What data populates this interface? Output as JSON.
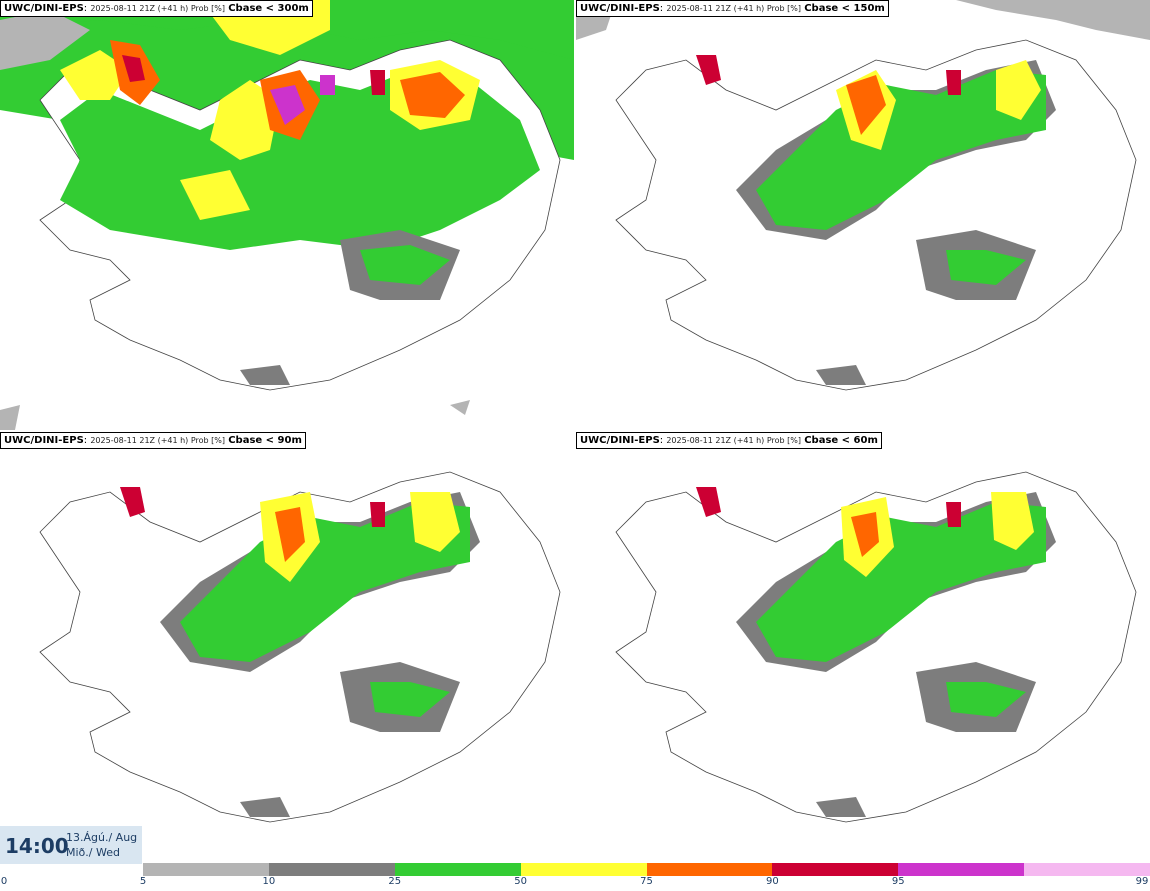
{
  "panels": [
    {
      "model": "UWC/DINI-EPS",
      "meta": "2025-08-11 21Z (+41 h) Prob [%]",
      "threshold": "Cbase < 300m"
    },
    {
      "model": "UWC/DINI-EPS",
      "meta": "2025-08-11 21Z (+41 h) Prob [%]",
      "threshold": "Cbase < 150m"
    },
    {
      "model": "UWC/DINI-EPS",
      "meta": "2025-08-11 21Z (+41 h) Prob [%]",
      "threshold": "Cbase < 90m"
    },
    {
      "model": "UWC/DINI-EPS",
      "meta": "2025-08-11 21Z (+41 h) Prob [%]",
      "threshold": "Cbase < 60m"
    }
  ],
  "valid_time": {
    "time": "14:00",
    "date_line1": "13.Ágú./ Aug",
    "date_line2": "Mið./ Wed"
  },
  "legend": {
    "ticks": [
      "0",
      "5",
      "10",
      "25",
      "50",
      "75",
      "90",
      "95",
      "99"
    ],
    "bins": [
      {
        "from": 5,
        "to": 10,
        "color": "#b4b4b4"
      },
      {
        "from": 10,
        "to": 25,
        "color": "#7d7d7d"
      },
      {
        "from": 25,
        "to": 50,
        "color": "#33cc33"
      },
      {
        "from": 50,
        "to": 75,
        "color": "#ffff33"
      },
      {
        "from": 75,
        "to": 90,
        "color": "#ff6600"
      },
      {
        "from": 90,
        "to": 95,
        "color": "#cc0033"
      },
      {
        "from": 95,
        "to": 99,
        "color": "#cc33cc"
      },
      {
        "from": 99,
        "to": 100,
        "color": "#f5b8f0"
      }
    ]
  }
}
